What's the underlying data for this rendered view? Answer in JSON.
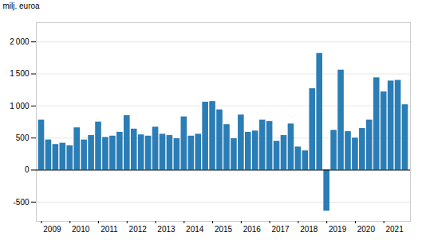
{
  "chart_data": {
    "type": "bar",
    "ylabel": "milj. euroa",
    "categories": [
      "2009",
      null,
      null,
      null,
      "2010",
      null,
      null,
      null,
      "2011",
      null,
      null,
      null,
      "2012",
      null,
      null,
      null,
      "2013",
      null,
      null,
      null,
      "2014",
      null,
      null,
      null,
      "2015",
      null,
      null,
      null,
      "2016",
      null,
      null,
      null,
      "2017",
      null,
      null,
      null,
      "2018",
      null,
      null,
      null,
      "2019",
      null,
      null,
      null,
      "2020",
      null,
      null,
      null,
      "2021",
      null,
      null,
      null
    ],
    "values": [
      780,
      470,
      400,
      420,
      380,
      660,
      470,
      540,
      750,
      510,
      530,
      590,
      850,
      640,
      550,
      530,
      670,
      560,
      540,
      490,
      830,
      530,
      560,
      1060,
      1070,
      940,
      710,
      490,
      860,
      590,
      610,
      780,
      760,
      450,
      540,
      720,
      360,
      300,
      1270,
      1820,
      -640,
      620,
      1560,
      600,
      500,
      650,
      780,
      1440,
      1220,
      1390,
      1400,
      1020
    ],
    "color": "#2a7db5",
    "ylim": [
      -800,
      2300
    ],
    "yticks": [
      -500,
      0,
      500,
      {
        "value": 1000,
        "label": "1 000"
      },
      {
        "value": 1500,
        "label": "1 500"
      },
      {
        "value": 2000,
        "label": "2 000"
      }
    ],
    "grid": true
  }
}
